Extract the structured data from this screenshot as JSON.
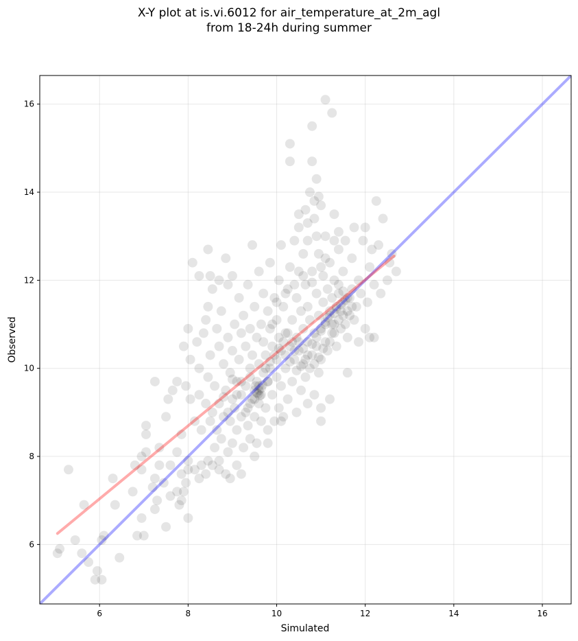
{
  "chart_data": {
    "type": "scatter",
    "title": "X-Y plot at is.vi.6012 for air_temperature_at_2m_agl",
    "subtitle": "from 18-24h during summer",
    "xlabel": "Simulated",
    "ylabel": "Observed",
    "xlim": [
      4.65,
      16.65
    ],
    "ylim": [
      4.65,
      16.65
    ],
    "xticks": [
      6,
      8,
      10,
      12,
      14,
      16
    ],
    "yticks": [
      6,
      8,
      10,
      12,
      14,
      16
    ],
    "grid": true,
    "point_color": "#000000",
    "point_alpha": 0.1,
    "identity_line": {
      "color": "#0000ff",
      "x": [
        4.65,
        16.65
      ],
      "y": [
        4.65,
        16.65
      ]
    },
    "fit_line": {
      "color": "#ff0000",
      "x": [
        5.05,
        12.65
      ],
      "y": [
        6.25,
        12.55
      ]
    },
    "points": [
      [
        5.05,
        5.8
      ],
      [
        5.1,
        5.9
      ],
      [
        5.3,
        7.7
      ],
      [
        5.45,
        6.1
      ],
      [
        5.6,
        5.8
      ],
      [
        5.65,
        6.9
      ],
      [
        5.75,
        5.6
      ],
      [
        5.9,
        5.2
      ],
      [
        5.95,
        5.4
      ],
      [
        6.05,
        5.2
      ],
      [
        6.05,
        6.1
      ],
      [
        6.1,
        6.2
      ],
      [
        6.3,
        7.5
      ],
      [
        6.35,
        6.9
      ],
      [
        6.45,
        5.7
      ],
      [
        6.75,
        7.2
      ],
      [
        6.8,
        7.8
      ],
      [
        6.85,
        6.2
      ],
      [
        6.95,
        6.6
      ],
      [
        6.95,
        7.7
      ],
      [
        6.95,
        8.0
      ],
      [
        7.0,
        6.2
      ],
      [
        7.05,
        8.1
      ],
      [
        7.05,
        8.5
      ],
      [
        7.05,
        8.7
      ],
      [
        7.2,
        7.3
      ],
      [
        7.25,
        6.8
      ],
      [
        7.25,
        7.5
      ],
      [
        7.25,
        9.7
      ],
      [
        7.3,
        7.0
      ],
      [
        7.35,
        7.8
      ],
      [
        7.35,
        8.2
      ],
      [
        7.45,
        7.4
      ],
      [
        7.5,
        6.4
      ],
      [
        7.5,
        8.9
      ],
      [
        7.55,
        9.3
      ],
      [
        7.6,
        7.1
      ],
      [
        7.6,
        7.8
      ],
      [
        7.65,
        9.5
      ],
      [
        7.75,
        7.2
      ],
      [
        7.75,
        8.1
      ],
      [
        7.75,
        9.7
      ],
      [
        7.8,
        6.9
      ],
      [
        7.85,
        7.0
      ],
      [
        7.85,
        7.6
      ],
      [
        7.85,
        8.5
      ],
      [
        7.9,
        7.2
      ],
      [
        7.9,
        10.5
      ],
      [
        7.95,
        7.4
      ],
      [
        7.95,
        9.6
      ],
      [
        8.0,
        6.6
      ],
      [
        8.0,
        7.7
      ],
      [
        8.0,
        7.9
      ],
      [
        8.0,
        10.9
      ],
      [
        8.05,
        9.3
      ],
      [
        8.05,
        10.2
      ],
      [
        8.1,
        12.4
      ],
      [
        8.15,
        8.8
      ],
      [
        8.2,
        10.6
      ],
      [
        8.25,
        7.5
      ],
      [
        8.25,
        9.4
      ],
      [
        8.25,
        10.0
      ],
      [
        8.25,
        12.1
      ],
      [
        8.3,
        8.6
      ],
      [
        8.35,
        10.8
      ],
      [
        8.4,
        7.6
      ],
      [
        8.4,
        9.2
      ],
      [
        8.4,
        11.1
      ],
      [
        8.45,
        9.8
      ],
      [
        8.45,
        11.4
      ],
      [
        8.45,
        12.7
      ],
      [
        8.5,
        8.8
      ],
      [
        8.5,
        10.3
      ],
      [
        8.5,
        12.1
      ],
      [
        8.55,
        7.8
      ],
      [
        8.55,
        9.0
      ],
      [
        8.55,
        11.8
      ],
      [
        8.6,
        8.2
      ],
      [
        8.6,
        9.6
      ],
      [
        8.65,
        8.6
      ],
      [
        8.65,
        10.9
      ],
      [
        8.7,
        7.9
      ],
      [
        8.7,
        9.2
      ],
      [
        8.7,
        10.5
      ],
      [
        8.7,
        12.0
      ],
      [
        8.75,
        8.4
      ],
      [
        8.75,
        11.3
      ],
      [
        8.8,
        8.9
      ],
      [
        8.8,
        10.1
      ],
      [
        8.85,
        7.6
      ],
      [
        8.85,
        9.5
      ],
      [
        8.85,
        12.5
      ],
      [
        8.9,
        8.1
      ],
      [
        8.9,
        10.7
      ],
      [
        8.9,
        11.9
      ],
      [
        8.95,
        8.8
      ],
      [
        8.95,
        9.9
      ],
      [
        9.0,
        8.3
      ],
      [
        9.0,
        10.4
      ],
      [
        9.0,
        12.1
      ],
      [
        9.05,
        9.1
      ],
      [
        9.05,
        11.0
      ],
      [
        9.1,
        7.8
      ],
      [
        9.1,
        8.6
      ],
      [
        9.1,
        9.7
      ],
      [
        9.15,
        10.2
      ],
      [
        9.15,
        11.6
      ],
      [
        9.2,
        8.9
      ],
      [
        9.2,
        9.4
      ],
      [
        9.2,
        10.8
      ],
      [
        9.25,
        8.2
      ],
      [
        9.25,
        11.2
      ],
      [
        9.3,
        9.6
      ],
      [
        9.3,
        10.5
      ],
      [
        9.35,
        8.7
      ],
      [
        9.35,
        9.1
      ],
      [
        9.35,
        11.9
      ],
      [
        9.4,
        8.4
      ],
      [
        9.4,
        9.8
      ],
      [
        9.4,
        10.9
      ],
      [
        9.45,
        9.3
      ],
      [
        9.45,
        10.3
      ],
      [
        9.45,
        12.8
      ],
      [
        9.5,
        8.9
      ],
      [
        9.5,
        9.5
      ],
      [
        9.5,
        11.4
      ],
      [
        9.55,
        8.3
      ],
      [
        9.55,
        9.7
      ],
      [
        9.55,
        10.7
      ],
      [
        9.6,
        9.2
      ],
      [
        9.6,
        9.6
      ],
      [
        9.6,
        10.1
      ],
      [
        9.6,
        12.2
      ],
      [
        9.65,
        8.8
      ],
      [
        9.65,
        9.4
      ],
      [
        9.65,
        11.0
      ],
      [
        9.7,
        9.9
      ],
      [
        9.7,
        10.6
      ],
      [
        9.7,
        11.7
      ],
      [
        9.75,
        9.1
      ],
      [
        9.75,
        10.3
      ],
      [
        9.8,
        8.6
      ],
      [
        9.8,
        9.7
      ],
      [
        9.8,
        11.3
      ],
      [
        9.85,
        10.0
      ],
      [
        9.85,
        10.9
      ],
      [
        9.85,
        12.4
      ],
      [
        9.9,
        9.4
      ],
      [
        9.9,
        10.5
      ],
      [
        9.95,
        8.8
      ],
      [
        9.95,
        11.6
      ],
      [
        10.0,
        9.8
      ],
      [
        10.0,
        10.2
      ],
      [
        10.0,
        11.1
      ],
      [
        10.05,
        9.1
      ],
      [
        10.05,
        10.7
      ],
      [
        10.05,
        12.0
      ],
      [
        10.1,
        9.6
      ],
      [
        10.1,
        10.4
      ],
      [
        10.1,
        12.8
      ],
      [
        10.15,
        8.9
      ],
      [
        10.15,
        11.4
      ],
      [
        10.2,
        10.0
      ],
      [
        10.2,
        10.8
      ],
      [
        10.25,
        9.3
      ],
      [
        10.25,
        11.8
      ],
      [
        10.3,
        10.5
      ],
      [
        10.3,
        12.3
      ],
      [
        10.3,
        14.7
      ],
      [
        10.3,
        15.1
      ],
      [
        10.35,
        9.7
      ],
      [
        10.35,
        11.1
      ],
      [
        10.4,
        10.2
      ],
      [
        10.4,
        12.9
      ],
      [
        10.45,
        9.0
      ],
      [
        10.45,
        10.7
      ],
      [
        10.45,
        11.6
      ],
      [
        10.5,
        10.4
      ],
      [
        10.5,
        12.2
      ],
      [
        10.5,
        13.2
      ],
      [
        10.55,
        9.5
      ],
      [
        10.55,
        11.3
      ],
      [
        10.6,
        10.1
      ],
      [
        10.6,
        10.9
      ],
      [
        10.6,
        12.6
      ],
      [
        10.65,
        9.8
      ],
      [
        10.65,
        11.9
      ],
      [
        10.65,
        13.6
      ],
      [
        10.7,
        10.6
      ],
      [
        10.7,
        11.4
      ],
      [
        10.7,
        12.9
      ],
      [
        10.75,
        10.0
      ],
      [
        10.75,
        11.1
      ],
      [
        10.75,
        14.0
      ],
      [
        10.8,
        10.3
      ],
      [
        10.8,
        12.2
      ],
      [
        10.8,
        14.7
      ],
      [
        10.8,
        15.5
      ],
      [
        10.85,
        9.4
      ],
      [
        10.85,
        10.8
      ],
      [
        10.85,
        13.4
      ],
      [
        10.9,
        10.5
      ],
      [
        10.9,
        11.7
      ],
      [
        10.9,
        14.3
      ],
      [
        10.95,
        9.9
      ],
      [
        10.95,
        11.2
      ],
      [
        10.95,
        12.6
      ],
      [
        11.0,
        10.2
      ],
      [
        11.0,
        10.9
      ],
      [
        11.0,
        13.7
      ],
      [
        11.0,
        8.8
      ],
      [
        11.05,
        11.5
      ],
      [
        11.05,
        12.1
      ],
      [
        11.1,
        10.6
      ],
      [
        11.1,
        11.0
      ],
      [
        11.1,
        13.0
      ],
      [
        11.1,
        16.1
      ],
      [
        11.15,
        10.4
      ],
      [
        11.15,
        11.8
      ],
      [
        11.2,
        11.2
      ],
      [
        11.2,
        12.4
      ],
      [
        11.2,
        9.3
      ],
      [
        11.25,
        10.8
      ],
      [
        11.25,
        11.6
      ],
      [
        11.25,
        15.8
      ],
      [
        11.3,
        11.0
      ],
      [
        11.3,
        12.0
      ],
      [
        11.3,
        13.5
      ],
      [
        11.35,
        10.5
      ],
      [
        11.35,
        11.4
      ],
      [
        11.4,
        11.7
      ],
      [
        11.4,
        12.7
      ],
      [
        11.45,
        10.9
      ],
      [
        11.45,
        11.3
      ],
      [
        11.5,
        11.5
      ],
      [
        11.5,
        12.2
      ],
      [
        11.55,
        11.0
      ],
      [
        11.55,
        12.9
      ],
      [
        11.6,
        11.6
      ],
      [
        11.6,
        10.7
      ],
      [
        11.65,
        11.2
      ],
      [
        11.7,
        12.5
      ],
      [
        11.7,
        11.8
      ],
      [
        11.75,
        11.1
      ],
      [
        11.75,
        13.2
      ],
      [
        11.8,
        11.4
      ],
      [
        11.85,
        10.6
      ],
      [
        11.85,
        12.0
      ],
      [
        11.9,
        11.7
      ],
      [
        11.95,
        12.9
      ],
      [
        12.0,
        13.2
      ],
      [
        12.0,
        10.9
      ],
      [
        12.05,
        11.5
      ],
      [
        12.1,
        12.3
      ],
      [
        12.15,
        12.7
      ],
      [
        12.2,
        11.9
      ],
      [
        12.25,
        13.8
      ],
      [
        12.3,
        12.8
      ],
      [
        12.35,
        11.7
      ],
      [
        12.4,
        13.4
      ],
      [
        12.5,
        12.0
      ],
      [
        12.55,
        12.4
      ],
      [
        12.6,
        12.6
      ],
      [
        12.7,
        12.2
      ],
      [
        12.2,
        10.7
      ],
      [
        12.1,
        10.7
      ],
      [
        11.6,
        9.9
      ],
      [
        11.0,
        9.1
      ],
      [
        10.7,
        9.2
      ],
      [
        10.1,
        8.8
      ],
      [
        9.8,
        8.3
      ],
      [
        9.5,
        8.0
      ],
      [
        9.2,
        7.6
      ],
      [
        8.95,
        7.5
      ],
      [
        8.7,
        7.7
      ],
      [
        8.45,
        7.9
      ],
      [
        8.3,
        7.8
      ],
      [
        8.15,
        7.7
      ],
      [
        9.1,
        9.4
      ],
      [
        9.3,
        9.0
      ],
      [
        9.5,
        9.3
      ],
      [
        9.55,
        9.45
      ],
      [
        9.6,
        9.5
      ],
      [
        9.65,
        9.55
      ],
      [
        9.58,
        9.42
      ],
      [
        9.62,
        9.38
      ],
      [
        9.52,
        9.6
      ],
      [
        9.68,
        9.62
      ],
      [
        9.4,
        9.2
      ],
      [
        9.8,
        9.7
      ],
      [
        10.2,
        10.3
      ],
      [
        10.3,
        10.15
      ],
      [
        10.4,
        10.4
      ],
      [
        10.5,
        10.6
      ],
      [
        10.6,
        10.45
      ],
      [
        10.7,
        10.3
      ],
      [
        10.8,
        10.55
      ],
      [
        10.9,
        10.7
      ],
      [
        11.0,
        10.85
      ],
      [
        11.1,
        11.05
      ],
      [
        11.15,
        11.15
      ],
      [
        11.2,
        11.3
      ],
      [
        11.25,
        11.0
      ],
      [
        11.3,
        11.25
      ],
      [
        11.35,
        11.35
      ],
      [
        11.4,
        11.1
      ],
      [
        11.45,
        11.45
      ],
      [
        11.5,
        11.2
      ],
      [
        11.55,
        11.55
      ],
      [
        11.6,
        11.3
      ],
      [
        11.65,
        11.6
      ],
      [
        11.7,
        11.4
      ],
      [
        11.5,
        11.75
      ],
      [
        11.4,
        11.9
      ],
      [
        11.3,
        10.8
      ],
      [
        11.2,
        10.6
      ],
      [
        11.05,
        10.45
      ],
      [
        10.95,
        10.25
      ],
      [
        10.85,
        10.1
      ],
      [
        10.65,
        10.2
      ],
      [
        10.55,
        10.05
      ],
      [
        10.45,
        9.95
      ],
      [
        10.35,
        10.6
      ],
      [
        10.25,
        10.8
      ],
      [
        10.15,
        10.6
      ],
      [
        10.05,
        10.45
      ],
      [
        9.95,
        10.3
      ],
      [
        9.85,
        10.15
      ],
      [
        9.75,
        10.0
      ],
      [
        9.9,
        11.0
      ],
      [
        10.0,
        11.5
      ],
      [
        10.2,
        11.7
      ],
      [
        10.4,
        11.9
      ],
      [
        10.6,
        12.1
      ],
      [
        10.8,
        11.95
      ],
      [
        11.0,
        12.3
      ],
      [
        11.1,
        12.5
      ],
      [
        11.3,
        12.9
      ],
      [
        11.4,
        13.1
      ],
      [
        10.9,
        13.0
      ],
      [
        10.7,
        13.3
      ],
      [
        10.5,
        13.5
      ],
      [
        10.95,
        13.9
      ],
      [
        10.85,
        13.8
      ],
      [
        8.9,
        9.0
      ],
      [
        9.0,
        9.3
      ],
      [
        9.2,
        9.7
      ],
      [
        9.4,
        10.0
      ],
      [
        9.0,
        9.75
      ],
      [
        8.8,
        9.35
      ]
    ]
  }
}
